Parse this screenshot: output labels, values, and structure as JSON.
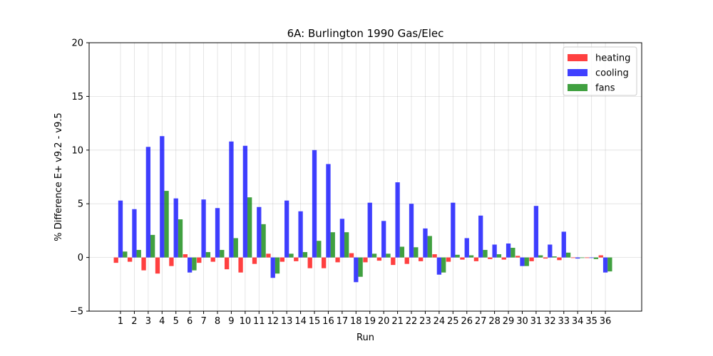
{
  "chart_data": {
    "type": "bar",
    "title": "6A: Burlington 1990 Gas/Elec",
    "xlabel": "Run",
    "ylabel": "% Difference E+ v9.2 - v9.5",
    "ylim": [
      -5,
      20
    ],
    "yticks": [
      -5,
      0,
      5,
      10,
      15,
      20
    ],
    "grid": true,
    "legend_position": "top-right",
    "categories": [
      "1",
      "2",
      "3",
      "4",
      "5",
      "6",
      "7",
      "8",
      "9",
      "10",
      "11",
      "12",
      "13",
      "14",
      "15",
      "16",
      "17",
      "18",
      "19",
      "20",
      "21",
      "22",
      "23",
      "24",
      "25",
      "26",
      "27",
      "28",
      "29",
      "30",
      "31",
      "32",
      "33",
      "34",
      "35",
      "36"
    ],
    "series": [
      {
        "name": "heating",
        "color": "#ff0000",
        "values": [
          -0.5,
          -0.4,
          -1.2,
          -1.5,
          -0.8,
          0.3,
          -0.5,
          -0.4,
          -1.1,
          -1.4,
          -0.6,
          0.35,
          -0.4,
          -0.35,
          -1.0,
          -1.0,
          -0.45,
          0.4,
          -0.45,
          -0.3,
          -0.7,
          -0.6,
          -0.35,
          0.3,
          -0.4,
          -0.2,
          -0.35,
          -0.15,
          -0.2,
          0.15,
          -0.35,
          -0.1,
          -0.25,
          -0.05,
          -0.05,
          0.2
        ]
      },
      {
        "name": "cooling",
        "color": "#0000ff",
        "values": [
          5.3,
          4.5,
          10.3,
          11.3,
          5.5,
          -1.4,
          5.4,
          4.6,
          10.8,
          10.4,
          4.7,
          -1.9,
          5.3,
          4.3,
          10.0,
          8.7,
          3.6,
          -2.3,
          5.1,
          3.4,
          7.0,
          5.0,
          2.7,
          -1.6,
          5.1,
          1.8,
          3.9,
          1.2,
          1.3,
          -0.8,
          4.8,
          1.2,
          2.4,
          -0.1,
          -0.05,
          -1.4
        ]
      },
      {
        "name": "fans",
        "color": "#008000",
        "values": [
          0.55,
          0.7,
          2.1,
          6.2,
          3.55,
          -1.2,
          0.5,
          0.7,
          1.8,
          5.6,
          3.1,
          -1.5,
          0.35,
          0.5,
          1.55,
          2.35,
          2.35,
          -1.8,
          0.35,
          0.35,
          1.0,
          0.95,
          2.0,
          -1.4,
          0.25,
          0.2,
          0.7,
          0.3,
          0.9,
          -0.8,
          0.2,
          0.1,
          0.45,
          -0.05,
          -0.15,
          -1.3
        ]
      }
    ]
  }
}
